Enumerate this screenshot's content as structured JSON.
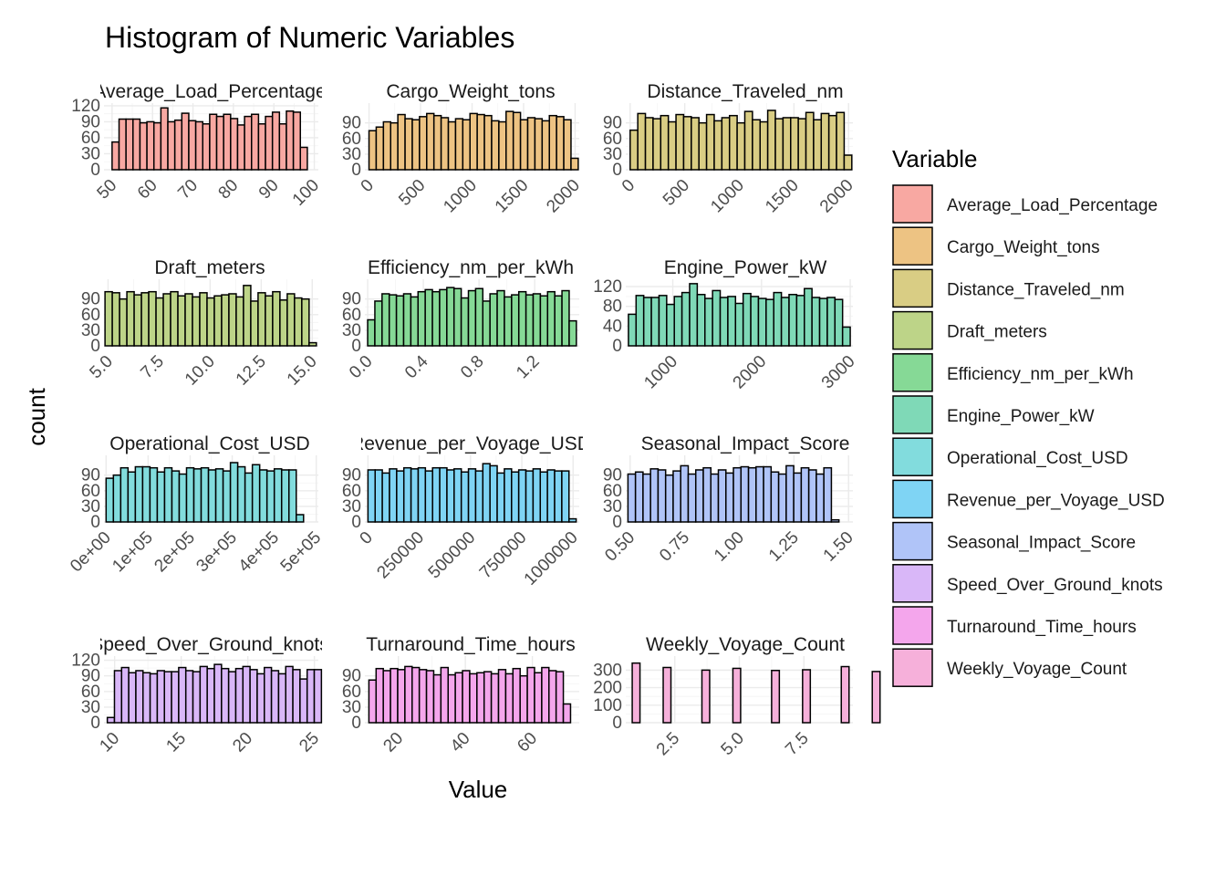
{
  "chart_data": {
    "type": "bar",
    "title": "Histogram of Numeric Variables",
    "xlabel": "Value",
    "ylabel": "count",
    "legend": {
      "title": "Variable",
      "position": "right"
    },
    "grid": true,
    "panels": [
      {
        "strip": "Average_Load_Percentage",
        "fill": "#F8A8A2",
        "xlim": [
          48,
          101
        ],
        "ylim": [
          0,
          125
        ],
        "yticks": [
          0,
          30,
          60,
          90,
          120
        ],
        "xticks": [
          50,
          60,
          70,
          80,
          90,
          100
        ],
        "xtick_labels": [
          "50",
          "60",
          "70",
          "80",
          "90",
          "100"
        ],
        "bin_start": 50,
        "bin_width": 1.724,
        "values": [
          52,
          95,
          95,
          95,
          88,
          90,
          88,
          116,
          90,
          93,
          106,
          92,
          90,
          86,
          104,
          100,
          104,
          96,
          84,
          100,
          104,
          86,
          100,
          108,
          86,
          110,
          108,
          42
        ]
      },
      {
        "strip": "Cargo_Weight_tons",
        "fill": "#EDC383",
        "xlim": [
          -40,
          2040
        ],
        "ylim": [
          0,
          128
        ],
        "yticks": [
          0,
          30,
          60,
          90
        ],
        "xticks": [
          0,
          500,
          1000,
          1500,
          2000
        ],
        "xtick_labels": [
          "0",
          "500",
          "1000",
          "1500",
          "2000"
        ],
        "bin_start": 0,
        "bin_width": 70,
        "values": [
          75,
          82,
          92,
          90,
          106,
          98,
          96,
          102,
          108,
          104,
          100,
          92,
          98,
          96,
          108,
          106,
          104,
          94,
          92,
          112,
          110,
          96,
          100,
          98,
          94,
          104,
          102,
          96,
          22
        ]
      },
      {
        "strip": "Distance_Traveled_nm",
        "fill": "#D9CD84",
        "xlim": [
          -40,
          2040
        ],
        "ylim": [
          0,
          128
        ],
        "yticks": [
          0,
          30,
          60,
          90
        ],
        "xticks": [
          0,
          500,
          1000,
          1500,
          2000
        ],
        "xtick_labels": [
          "0",
          "500",
          "1000",
          "1500",
          "2000"
        ],
        "bin_start": 0,
        "bin_width": 70,
        "values": [
          76,
          108,
          100,
          98,
          104,
          92,
          106,
          102,
          100,
          90,
          106,
          94,
          100,
          104,
          90,
          112,
          96,
          92,
          114,
          98,
          100,
          100,
          98,
          110,
          96,
          108,
          104,
          110,
          28
        ]
      },
      {
        "strip": "Draft_meters",
        "fill": "#BDD488",
        "xlim": [
          4.8,
          15.3
        ],
        "ylim": [
          0,
          128
        ],
        "yticks": [
          0,
          30,
          60,
          90
        ],
        "xticks": [
          5.0,
          7.5,
          10.0,
          12.5,
          15.0
        ],
        "xtick_labels": [
          "5.0",
          "7.5",
          "10.0",
          "12.5",
          "15.0"
        ],
        "bin_start": 4.85,
        "bin_width": 0.357,
        "values": [
          104,
          102,
          90,
          104,
          98,
          102,
          104,
          92,
          100,
          104,
          96,
          100,
          94,
          102,
          92,
          96,
          98,
          100,
          94,
          116,
          86,
          102,
          96,
          104,
          88,
          100,
          92,
          90,
          6
        ]
      },
      {
        "strip": "Efficiency_nm_per_kWh",
        "fill": "#86D996",
        "xlim": [
          -0.02,
          1.52
        ],
        "ylim": [
          0,
          128
        ],
        "yticks": [
          0,
          30,
          60,
          90
        ],
        "xticks": [
          0.0,
          0.4,
          0.8,
          1.2
        ],
        "xtick_labels": [
          "0.0",
          "0.4",
          "0.8",
          "1.2"
        ],
        "bin_start": 0,
        "bin_width": 0.0517,
        "values": [
          50,
          86,
          100,
          98,
          96,
          100,
          94,
          104,
          108,
          104,
          108,
          112,
          110,
          92,
          106,
          110,
          86,
          100,
          106,
          94,
          98,
          104,
          98,
          100,
          96,
          104,
          96,
          106,
          48
        ]
      },
      {
        "strip": "Engine_Power_kW",
        "fill": "#7FD9B7",
        "xlim": [
          470,
          3030
        ],
        "ylim": [
          0,
          135
        ],
        "yticks": [
          0,
          40,
          80,
          120
        ],
        "xticks": [
          1000,
          2000,
          3000
        ],
        "xtick_labels": [
          "1000",
          "2000",
          "3000"
        ],
        "bin_start": 500,
        "bin_width": 86.2,
        "values": [
          64,
          102,
          98,
          98,
          102,
          84,
          100,
          108,
          126,
          104,
          96,
          112,
          98,
          100,
          86,
          106,
          100,
          96,
          94,
          108,
          98,
          104,
          102,
          116,
          98,
          96,
          98,
          94,
          38
        ]
      },
      {
        "strip": "Operational_Cost_USD",
        "fill": "#82DCDD",
        "xlim": [
          -5000,
          505000
        ],
        "ylim": [
          0,
          128
        ],
        "yticks": [
          0,
          30,
          60,
          90
        ],
        "xticks": [
          0,
          100000,
          200000,
          300000,
          400000,
          500000
        ],
        "xtick_labels": [
          "0e+00",
          "1e+05",
          "2e+05",
          "3e+05",
          "4e+05",
          "5e+05"
        ],
        "bin_start": 0,
        "bin_width": 17400,
        "values": [
          84,
          90,
          104,
          96,
          106,
          106,
          104,
          96,
          104,
          98,
          92,
          104,
          102,
          104,
          100,
          102,
          98,
          114,
          106,
          94,
          110,
          100,
          98,
          102,
          100,
          100,
          14
        ]
      },
      {
        "strip": "Revenue_per_Voyage_USD",
        "fill": "#7FD4F4",
        "xlim": [
          -15000,
          1030000
        ],
        "ylim": [
          0,
          128
        ],
        "yticks": [
          0,
          30,
          60,
          90
        ],
        "xticks": [
          0,
          250000,
          500000,
          750000,
          1000000
        ],
        "xtick_labels": [
          "0",
          "250000",
          "500000",
          "750000",
          "1000000"
        ],
        "bin_start": 0,
        "bin_width": 35000,
        "values": [
          100,
          100,
          94,
          102,
          98,
          104,
          102,
          104,
          98,
          104,
          104,
          100,
          102,
          96,
          102,
          98,
          112,
          108,
          94,
          102,
          96,
          100,
          98,
          102,
          96,
          100,
          98,
          98,
          6
        ]
      },
      {
        "strip": "Seasonal_Impact_Score",
        "fill": "#B0C4F8",
        "xlim": [
          0.48,
          1.52
        ],
        "ylim": [
          0,
          128
        ],
        "yticks": [
          0,
          30,
          60,
          90
        ],
        "xticks": [
          0.5,
          0.75,
          1.0,
          1.25,
          1.5
        ],
        "xtick_labels": [
          "0.50",
          "0.75",
          "1.00",
          "1.25",
          "1.50"
        ],
        "bin_start": 0.49,
        "bin_width": 0.0345,
        "values": [
          92,
          96,
          92,
          102,
          100,
          90,
          98,
          108,
          92,
          100,
          104,
          92,
          100,
          94,
          104,
          106,
          104,
          106,
          106,
          96,
          92,
          108,
          94,
          104,
          100,
          92,
          104,
          4
        ]
      },
      {
        "strip": "Speed_Over_Ground_knots",
        "fill": "#D9B7F8",
        "xlim": [
          9.2,
          25.3
        ],
        "ylim": [
          0,
          128
        ],
        "yticks": [
          0,
          30,
          60,
          90,
          120
        ],
        "xticks": [
          10,
          15,
          20,
          25
        ],
        "xtick_labels": [
          "10",
          "15",
          "20",
          "25"
        ],
        "bin_start": 9.45,
        "bin_width": 0.536,
        "values": [
          10,
          100,
          106,
          96,
          100,
          96,
          94,
          100,
          98,
          98,
          106,
          100,
          98,
          108,
          104,
          112,
          104,
          98,
          104,
          108,
          102,
          94,
          106,
          100,
          94,
          108,
          102,
          84,
          102,
          102
        ]
      },
      {
        "strip": "Turnaround_Time_hours",
        "fill": "#F4A6EC",
        "xlim": [
          10,
          74
        ],
        "ylim": [
          0,
          128
        ],
        "yticks": [
          0,
          30,
          60,
          90
        ],
        "xticks": [
          20,
          40,
          60
        ],
        "xtick_labels": [
          "20",
          "40",
          "60"
        ],
        "bin_start": 11.2,
        "bin_width": 2.15,
        "values": [
          82,
          104,
          100,
          104,
          102,
          108,
          106,
          102,
          100,
          92,
          106,
          92,
          96,
          100,
          94,
          96,
          98,
          94,
          102,
          94,
          104,
          90,
          106,
          96,
          106,
          100,
          98,
          36
        ]
      },
      {
        "strip": "Weekly_Voyage_Count",
        "fill": "#F6B0DA",
        "xlim": [
          0.6,
          9.4
        ],
        "ylim": [
          0,
          380
        ],
        "yticks": [
          0,
          100,
          200,
          300
        ],
        "xticks": [
          2.5,
          5.0,
          7.5
        ],
        "xtick_labels": [
          "2.5",
          "5.0",
          "7.5"
        ],
        "bin_start": 0.85,
        "bin_width": 0.3,
        "values": [
          340,
          0,
          0,
          0,
          315,
          0,
          0,
          0,
          0,
          300,
          0,
          0,
          0,
          310,
          0,
          0,
          0,
          0,
          298,
          0,
          0,
          0,
          302,
          0,
          0,
          0,
          0,
          320,
          0,
          0,
          0,
          292
        ]
      }
    ]
  }
}
